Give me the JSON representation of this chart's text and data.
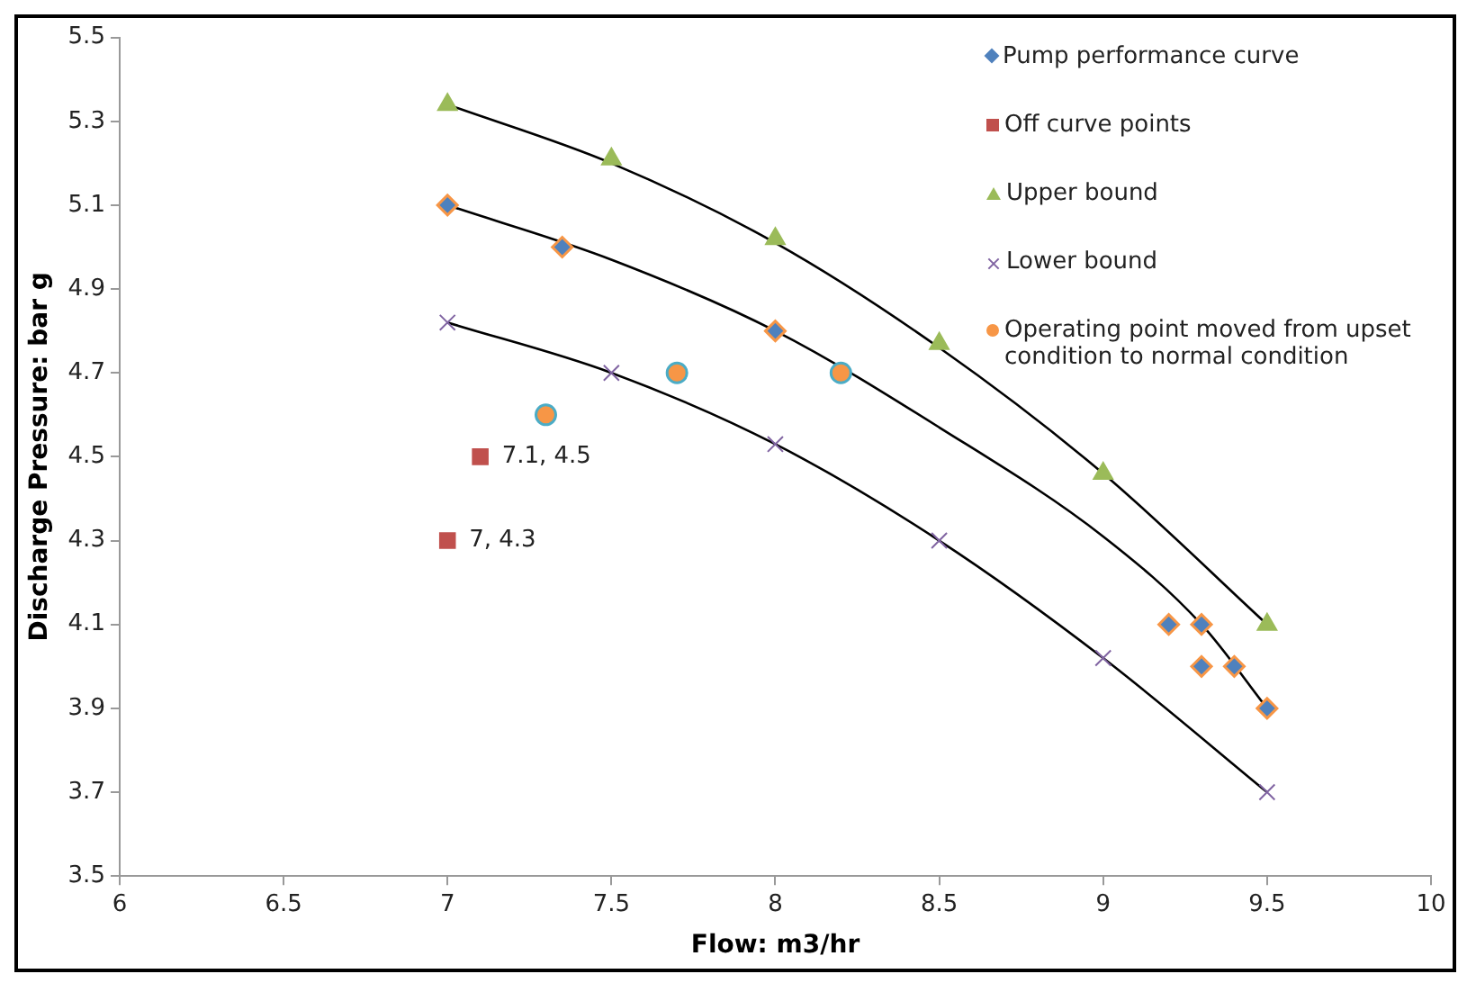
{
  "chart_data": {
    "type": "scatter",
    "xlabel": "Flow: m3/hr",
    "ylabel": "Discharge Pressure: bar g",
    "xlim": [
      6,
      10
    ],
    "xticks": [
      6,
      6.5,
      7,
      7.5,
      8,
      8.5,
      9,
      9.5,
      10
    ],
    "ylim": [
      3.5,
      5.5
    ],
    "yticks": [
      3.5,
      3.7,
      3.9,
      4.1,
      4.3,
      4.5,
      4.7,
      4.9,
      5.1,
      5.3,
      5.5
    ],
    "grid": false,
    "legend": "top right",
    "annotations": [
      {
        "text": "7.1, 4.5",
        "x": 7.1,
        "y": 4.5
      },
      {
        "text": "7, 4.3",
        "x": 7,
        "y": 4.3
      }
    ],
    "series": [
      {
        "name": "Pump performance curve",
        "marker": "diamond",
        "color": "#4f81bd",
        "x": [
          7,
          7.35,
          8,
          9.2,
          9.3,
          9.3,
          9.4,
          9.5
        ],
        "values": [
          5.1,
          5.0,
          4.8,
          4.1,
          4.1,
          4.0,
          4.0,
          3.9
        ]
      },
      {
        "name": "Off curve points",
        "marker": "square",
        "color": "#c0504d",
        "x": [
          7.1,
          7
        ],
        "values": [
          4.5,
          4.3
        ]
      },
      {
        "name": "Upper bound",
        "marker": "triangle",
        "color": "#9bbb59",
        "x": [
          7,
          7.5,
          8,
          8.5,
          9,
          9.5
        ],
        "values": [
          5.34,
          5.21,
          5.02,
          4.77,
          4.46,
          4.1
        ]
      },
      {
        "name": "Lower bound",
        "marker": "cross",
        "color": "#8064a2",
        "x": [
          7,
          7.5,
          8,
          8.5,
          9,
          9.5
        ],
        "values": [
          4.82,
          4.7,
          4.53,
          4.3,
          4.02,
          3.7
        ]
      },
      {
        "name": "Operating point moved from upset condition to normal condition",
        "marker": "circle",
        "color": "#f79646",
        "x": [
          7.3,
          7.7,
          8.2
        ],
        "values": [
          4.6,
          4.7,
          4.7
        ]
      },
      {
        "type": "line",
        "marker": "none",
        "color": "#000000",
        "x": [
          7,
          7.5,
          8,
          8.5,
          9,
          9.5
        ],
        "values": [
          5.34,
          5.2,
          5.01,
          4.76,
          4.46,
          4.1
        ]
      },
      {
        "type": "line",
        "marker": "none",
        "color": "#000000",
        "x": [
          7,
          7.5,
          8,
          8.5,
          9,
          9.3,
          9.5
        ],
        "values": [
          5.1,
          4.97,
          4.8,
          4.57,
          4.31,
          4.1,
          3.9
        ]
      },
      {
        "type": "line",
        "marker": "none",
        "color": "#000000",
        "x": [
          7,
          7.5,
          8,
          8.5,
          9,
          9.5
        ],
        "values": [
          4.82,
          4.7,
          4.53,
          4.3,
          4.02,
          3.7
        ]
      }
    ]
  }
}
